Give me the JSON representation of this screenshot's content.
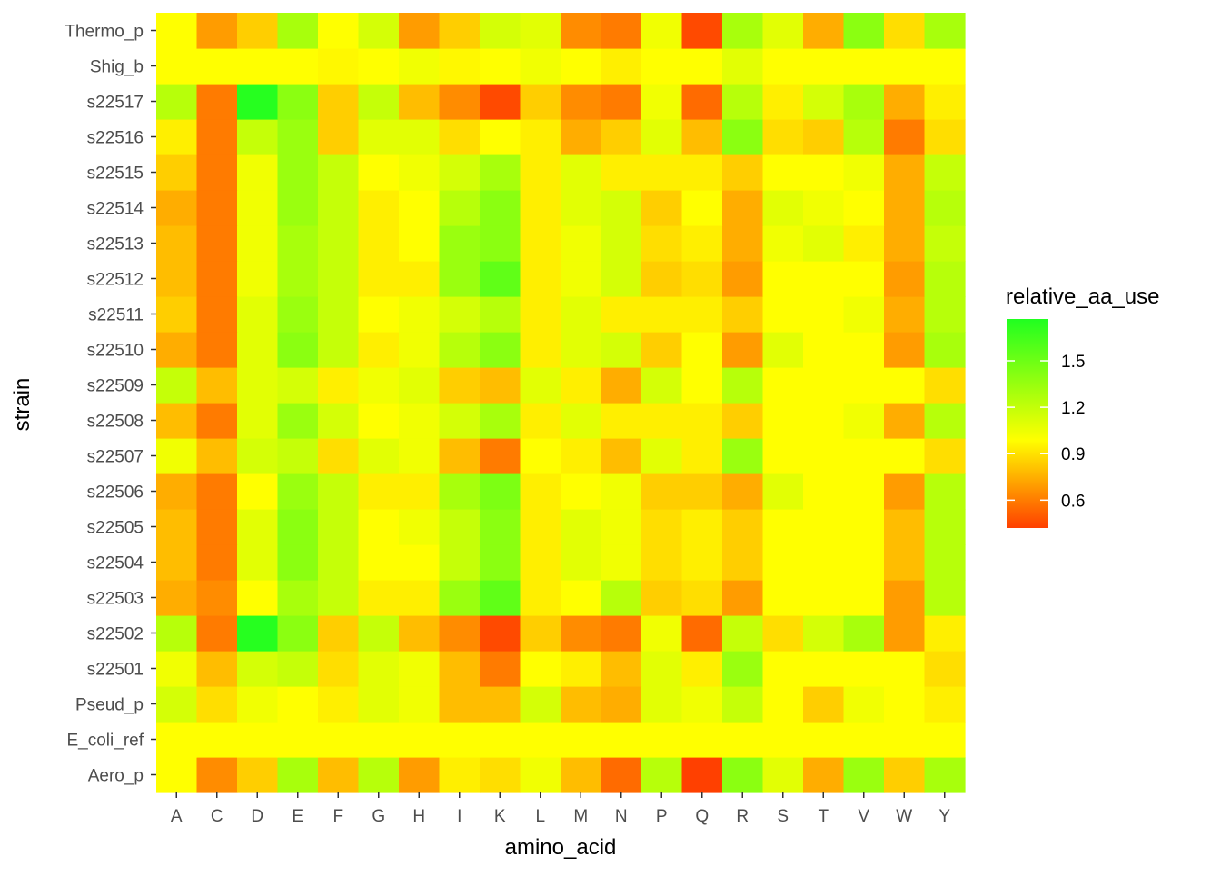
{
  "chart_data": {
    "type": "heatmap",
    "xlabel": "amino_acid",
    "ylabel": "strain",
    "x_categories": [
      "A",
      "C",
      "D",
      "E",
      "F",
      "G",
      "H",
      "I",
      "K",
      "L",
      "M",
      "N",
      "P",
      "Q",
      "R",
      "S",
      "T",
      "V",
      "W",
      "Y"
    ],
    "y_categories": [
      "Aero_p",
      "E_coli_ref",
      "Pseud_p",
      "s22501",
      "s22502",
      "s22503",
      "s22504",
      "s22505",
      "s22506",
      "s22507",
      "s22508",
      "s22509",
      "s22510",
      "s22511",
      "s22512",
      "s22513",
      "s22514",
      "s22515",
      "s22516",
      "s22517",
      "Shig_b",
      "Thermo_p"
    ],
    "values": [
      [
        1.0,
        0.65,
        0.85,
        1.3,
        0.8,
        1.25,
        0.7,
        0.95,
        0.9,
        1.05,
        0.8,
        0.55,
        1.25,
        0.4,
        1.4,
        1.1,
        0.75,
        1.35,
        0.85,
        1.3
      ],
      [
        1.0,
        1.0,
        1.0,
        1.0,
        1.0,
        1.0,
        1.0,
        1.0,
        1.0,
        1.0,
        1.0,
        1.0,
        1.0,
        1.0,
        1.0,
        1.0,
        1.0,
        1.0,
        1.0,
        1.0
      ],
      [
        1.15,
        0.9,
        1.05,
        1.0,
        0.95,
        1.1,
        1.05,
        0.8,
        0.8,
        1.15,
        0.8,
        0.75,
        1.1,
        1.05,
        1.2,
        1.0,
        0.85,
        1.05,
        1.0,
        0.95
      ],
      [
        1.05,
        0.8,
        1.15,
        1.2,
        0.9,
        1.1,
        1.05,
        0.8,
        0.6,
        1.0,
        0.95,
        0.8,
        1.1,
        0.95,
        1.35,
        1.0,
        1.0,
        1.0,
        1.0,
        0.9
      ],
      [
        1.25,
        0.6,
        1.75,
        1.4,
        0.85,
        1.2,
        0.8,
        0.65,
        0.45,
        0.85,
        0.65,
        0.6,
        1.05,
        0.55,
        1.2,
        0.9,
        1.15,
        1.3,
        0.7,
        0.95
      ],
      [
        0.75,
        0.65,
        1.0,
        1.3,
        1.2,
        0.95,
        0.95,
        1.35,
        1.55,
        0.95,
        1.0,
        1.25,
        0.85,
        0.9,
        0.7,
        1.0,
        1.0,
        1.0,
        0.7,
        1.25
      ],
      [
        0.8,
        0.6,
        1.1,
        1.4,
        1.2,
        1.0,
        1.0,
        1.2,
        1.4,
        0.95,
        1.1,
        1.05,
        0.9,
        0.95,
        0.85,
        1.0,
        1.0,
        1.0,
        0.8,
        1.25
      ],
      [
        0.8,
        0.6,
        1.1,
        1.4,
        1.2,
        1.0,
        1.05,
        1.2,
        1.4,
        0.95,
        1.1,
        1.05,
        0.9,
        0.95,
        0.85,
        1.0,
        1.0,
        1.0,
        0.8,
        1.25
      ],
      [
        0.75,
        0.6,
        1.0,
        1.35,
        1.2,
        0.95,
        0.95,
        1.3,
        1.45,
        0.95,
        1.0,
        1.05,
        0.85,
        0.85,
        0.75,
        1.1,
        1.0,
        1.0,
        0.7,
        1.25
      ],
      [
        1.05,
        0.8,
        1.15,
        1.2,
        0.9,
        1.1,
        1.05,
        0.8,
        0.6,
        1.0,
        0.95,
        0.8,
        1.1,
        0.95,
        1.35,
        1.0,
        1.0,
        1.0,
        1.0,
        0.9
      ],
      [
        0.8,
        0.6,
        1.1,
        1.35,
        1.15,
        1.0,
        1.05,
        1.15,
        1.3,
        0.95,
        1.1,
        0.95,
        0.95,
        0.95,
        0.85,
        1.0,
        1.0,
        1.05,
        0.75,
        1.25
      ],
      [
        1.2,
        0.8,
        1.1,
        1.15,
        0.95,
        1.05,
        1.1,
        0.85,
        0.8,
        1.1,
        0.95,
        0.75,
        1.15,
        1.0,
        1.25,
        1.0,
        1.0,
        1.0,
        1.0,
        0.9
      ],
      [
        0.75,
        0.6,
        1.1,
        1.4,
        1.2,
        0.95,
        1.05,
        1.25,
        1.4,
        0.95,
        1.1,
        1.15,
        0.85,
        1.0,
        0.7,
        1.1,
        1.0,
        1.0,
        0.7,
        1.3
      ],
      [
        0.85,
        0.6,
        1.1,
        1.35,
        1.2,
        1.0,
        1.05,
        1.15,
        1.25,
        0.95,
        1.1,
        0.95,
        0.95,
        0.95,
        0.85,
        1.0,
        1.0,
        1.05,
        0.75,
        1.25
      ],
      [
        0.8,
        0.6,
        1.05,
        1.3,
        1.2,
        0.95,
        0.95,
        1.35,
        1.55,
        0.95,
        1.05,
        1.15,
        0.85,
        0.9,
        0.7,
        1.0,
        1.0,
        1.0,
        0.7,
        1.25
      ],
      [
        0.8,
        0.6,
        1.05,
        1.3,
        1.2,
        0.95,
        1.0,
        1.35,
        1.4,
        0.95,
        1.05,
        1.15,
        0.9,
        0.95,
        0.75,
        1.05,
        1.1,
        0.95,
        0.75,
        1.2
      ],
      [
        0.75,
        0.6,
        1.05,
        1.35,
        1.2,
        0.95,
        1.0,
        1.25,
        1.4,
        0.95,
        1.1,
        1.15,
        0.85,
        1.0,
        0.75,
        1.1,
        1.05,
        1.0,
        0.75,
        1.25
      ],
      [
        0.85,
        0.6,
        1.05,
        1.35,
        1.2,
        1.0,
        1.05,
        1.15,
        1.3,
        0.95,
        1.1,
        0.95,
        0.95,
        0.95,
        0.85,
        1.0,
        1.0,
        1.05,
        0.75,
        1.2
      ],
      [
        0.95,
        0.6,
        1.2,
        1.35,
        0.85,
        1.1,
        1.1,
        0.9,
        1.0,
        0.95,
        0.75,
        0.85,
        1.1,
        0.8,
        1.4,
        0.9,
        0.85,
        1.25,
        0.6,
        0.9
      ],
      [
        1.25,
        0.6,
        1.75,
        1.4,
        0.85,
        1.2,
        0.8,
        0.65,
        0.45,
        0.85,
        0.65,
        0.6,
        1.05,
        0.55,
        1.25,
        0.95,
        1.15,
        1.3,
        0.75,
        0.95
      ],
      [
        1.0,
        1.0,
        1.0,
        1.0,
        0.98,
        1.0,
        1.05,
        0.98,
        1.0,
        1.05,
        1.0,
        0.95,
        1.0,
        1.0,
        1.1,
        1.0,
        1.0,
        1.0,
        1.0,
        1.0
      ],
      [
        1.0,
        0.7,
        0.85,
        1.3,
        1.0,
        1.15,
        0.7,
        0.85,
        1.15,
        1.1,
        0.65,
        0.6,
        1.05,
        0.45,
        1.3,
        1.1,
        0.75,
        1.4,
        0.9,
        1.3
      ]
    ],
    "scale": {
      "low_color": "#ff4000",
      "mid_color": "#ffff00",
      "high_color": "#20ff20",
      "min": 0.42,
      "mid": 1.0,
      "max": 1.77
    },
    "legend": {
      "title": "relative_aa_use",
      "position": "right",
      "ticks": [
        "1.5",
        "1.2",
        "0.9",
        "0.6"
      ],
      "tick_values": [
        1.5,
        1.2,
        0.9,
        0.6
      ]
    },
    "grid": true,
    "panel_background": "#ebebeb"
  }
}
